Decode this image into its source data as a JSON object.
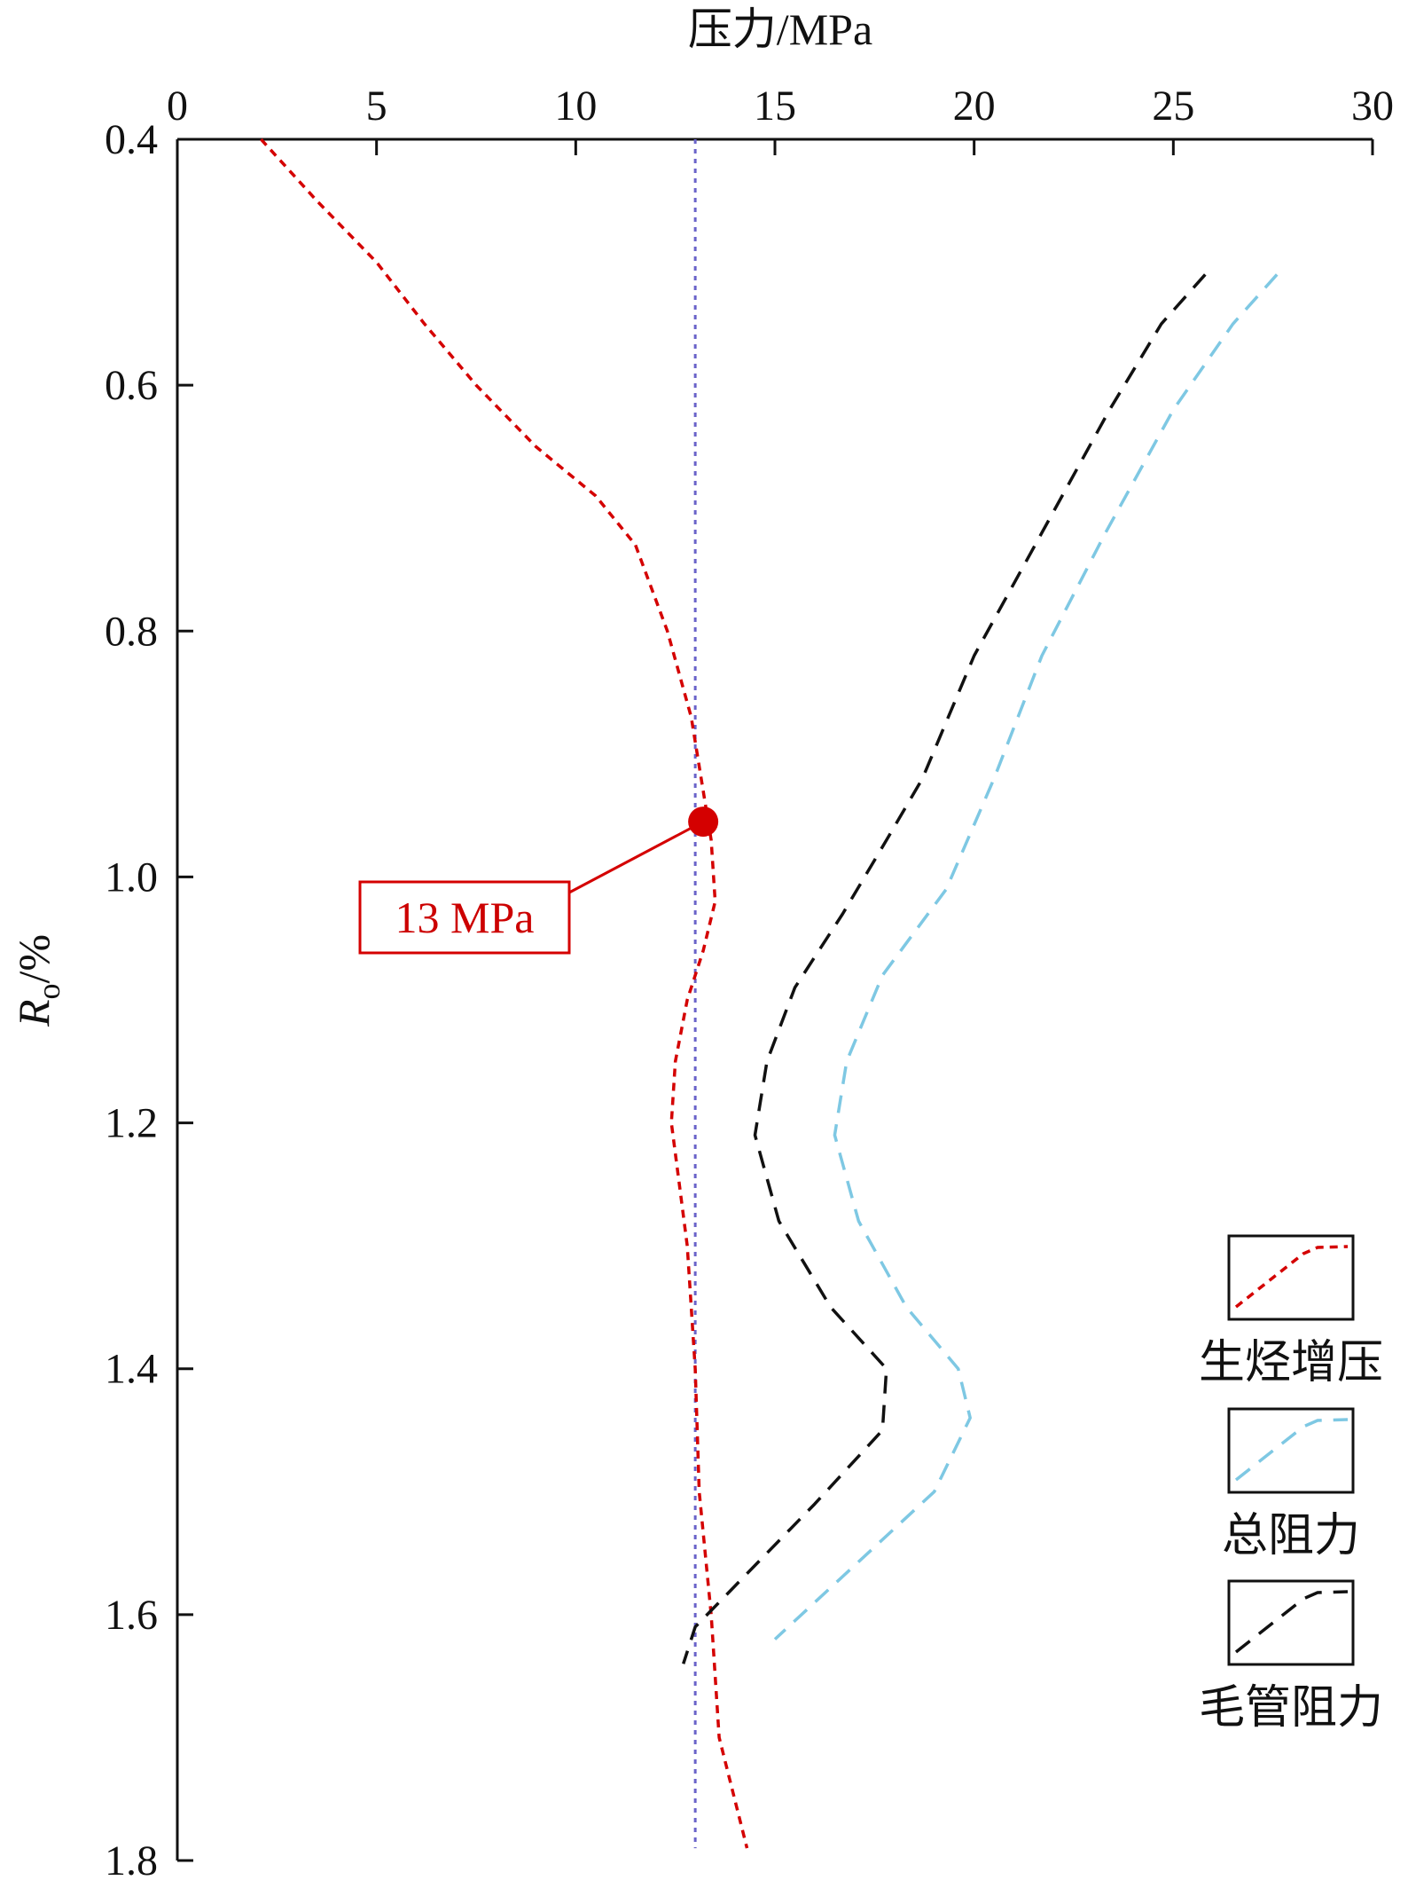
{
  "chart_data": {
    "type": "line",
    "orientation": "depth-profile",
    "xlabel": "压力/MPa",
    "ylabel_main": "R",
    "ylabel_sub": "o",
    "ylabel_unit": "/%",
    "x_axis_position": "top",
    "xlim": [
      0,
      30
    ],
    "ylim": [
      0.4,
      1.8
    ],
    "y_inverted": true,
    "xticks": [
      0,
      5,
      10,
      15,
      20,
      25,
      30
    ],
    "xtick_labels": [
      "0",
      "5",
      "10",
      "15",
      "20",
      "25",
      "30"
    ],
    "yticks": [
      0.4,
      0.6,
      0.8,
      1.0,
      1.2,
      1.4,
      1.6,
      1.8
    ],
    "ytick_labels": [
      "0.4",
      "0.6",
      "0.8",
      "1.0",
      "1.2",
      "1.4",
      "1.6",
      "1.8"
    ],
    "grid": false,
    "legend_position": "bottom-right",
    "series": [
      {
        "name": "生烃增压",
        "color": "#d40000",
        "dash": "short",
        "points": [
          [
            2.1,
            0.4
          ],
          [
            3.5,
            0.45
          ],
          [
            5.0,
            0.5
          ],
          [
            6.2,
            0.55
          ],
          [
            7.5,
            0.6
          ],
          [
            9.0,
            0.65
          ],
          [
            10.5,
            0.69
          ],
          [
            11.5,
            0.73
          ],
          [
            12.3,
            0.8
          ],
          [
            12.9,
            0.87
          ],
          [
            13.2,
            0.93
          ],
          [
            13.4,
            0.97
          ],
          [
            13.5,
            1.02
          ],
          [
            13.2,
            1.06
          ],
          [
            12.8,
            1.1
          ],
          [
            12.5,
            1.15
          ],
          [
            12.4,
            1.2
          ],
          [
            12.6,
            1.25
          ],
          [
            12.8,
            1.3
          ],
          [
            13.0,
            1.4
          ],
          [
            13.1,
            1.5
          ],
          [
            13.4,
            1.6
          ],
          [
            13.6,
            1.7
          ],
          [
            14.3,
            1.79
          ]
        ]
      },
      {
        "name": "总阻力",
        "color": "#7ec8e3",
        "dash": "long",
        "points": [
          [
            27.6,
            0.51
          ],
          [
            26.5,
            0.55
          ],
          [
            25.0,
            0.62
          ],
          [
            23.3,
            0.72
          ],
          [
            21.7,
            0.82
          ],
          [
            20.5,
            0.92
          ],
          [
            19.3,
            1.01
          ],
          [
            17.7,
            1.08
          ],
          [
            16.8,
            1.15
          ],
          [
            16.5,
            1.21
          ],
          [
            17.1,
            1.28
          ],
          [
            18.3,
            1.35
          ],
          [
            19.6,
            1.4
          ],
          [
            19.9,
            1.44
          ],
          [
            19.0,
            1.5
          ],
          [
            17.0,
            1.56
          ],
          [
            15.0,
            1.62
          ]
        ]
      },
      {
        "name": "毛管阻力",
        "color": "#111111",
        "dash": "long",
        "points": [
          [
            25.8,
            0.51
          ],
          [
            24.7,
            0.55
          ],
          [
            23.4,
            0.62
          ],
          [
            21.7,
            0.72
          ],
          [
            20.0,
            0.82
          ],
          [
            18.7,
            0.92
          ],
          [
            17.8,
            0.97
          ],
          [
            16.7,
            1.03
          ],
          [
            15.5,
            1.09
          ],
          [
            14.8,
            1.15
          ],
          [
            14.5,
            1.21
          ],
          [
            15.1,
            1.28
          ],
          [
            16.4,
            1.35
          ],
          [
            17.8,
            1.4
          ],
          [
            17.7,
            1.45
          ],
          [
            16.0,
            1.51
          ],
          [
            13.0,
            1.61
          ],
          [
            12.7,
            1.64
          ]
        ]
      }
    ],
    "reference_line": {
      "x": 13,
      "color": "#6a63c9",
      "dash": "dotted"
    },
    "annotation": {
      "text": "13 MPa",
      "point_x": 13.2,
      "point_y": 0.955,
      "color": "#d40000"
    }
  }
}
